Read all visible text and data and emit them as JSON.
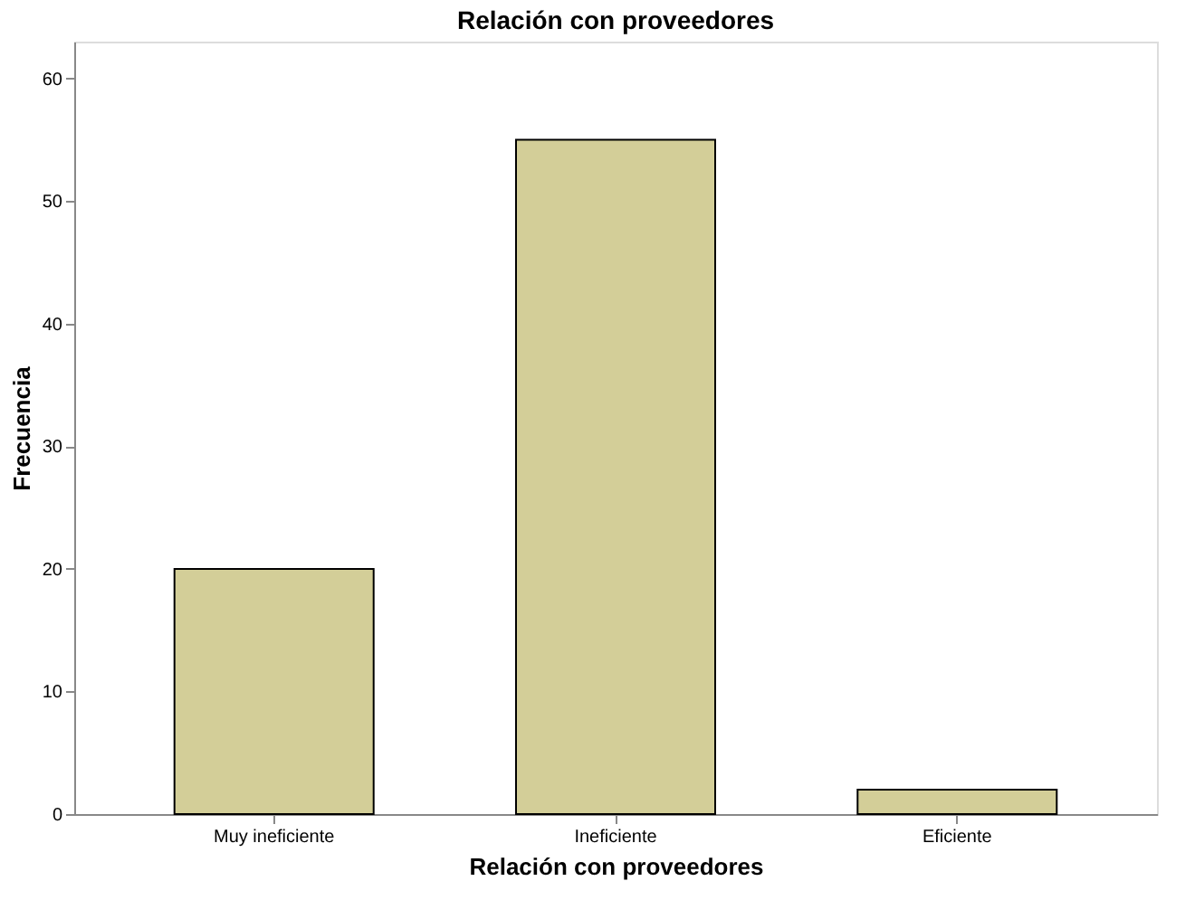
{
  "chart_data": {
    "type": "bar",
    "title": "Relación con proveedores",
    "xlabel": "Relación con proveedores",
    "ylabel": "Frecuencia",
    "categories": [
      "Muy ineficiente",
      "Ineficiente",
      "Eficiente"
    ],
    "values": [
      20,
      55,
      2
    ],
    "color": "#d3ce98",
    "ylim": [
      0,
      63
    ],
    "yticks": [
      0,
      10,
      20,
      30,
      40,
      50,
      60
    ],
    "grid": false
  }
}
